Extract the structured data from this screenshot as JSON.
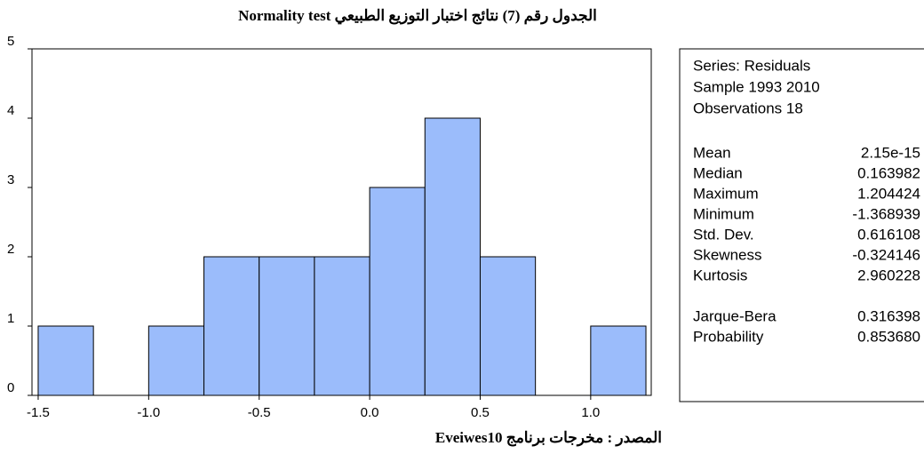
{
  "chart_data": {
    "type": "histogram",
    "title": "الجدول رقم (7) نتائج  اختبار التوزيع الطبيعي Normality test",
    "bins": [
      -1.5,
      -1.25,
      -1.0,
      -0.75,
      -0.5,
      -0.25,
      0.0,
      0.25,
      0.5,
      0.75,
      1.0,
      1.25
    ],
    "values": [
      1,
      0,
      1,
      2,
      2,
      2,
      3,
      4,
      2,
      0,
      1
    ],
    "color": "#9bbcfb",
    "xlim": [
      -1.528,
      1.274
    ],
    "ylim": [
      0,
      5
    ],
    "xticks": [
      {
        "value": -1.5,
        "label": "-1.5"
      },
      {
        "value": -1.0,
        "label": "-1.0"
      },
      -0.5,
      {
        "value": 0.0,
        "label": "0.0"
      },
      0.5,
      {
        "value": 1.0,
        "label": "1.0"
      }
    ],
    "yticks": [
      0,
      1,
      2,
      3,
      4,
      5
    ],
    "stats_box": {
      "header": [
        "Series: Residuals",
        "Sample 1993 2010",
        "Observations 18"
      ],
      "rows": [
        [
          "Mean",
          "2.15e-15"
        ],
        [
          "Median",
          "0.163982"
        ],
        [
          "Maximum",
          "1.204424"
        ],
        [
          "Minimum",
          "-1.368939"
        ],
        [
          "Std. Dev.",
          "0.616108"
        ],
        [
          "Skewness",
          "-0.324146"
        ],
        [
          "Kurtosis",
          "2.960228"
        ]
      ],
      "tests": [
        [
          "Jarque-Bera",
          "0.316398"
        ],
        [
          "Probability",
          "0.853680"
        ]
      ]
    },
    "source": "المصدر : مخرجات برنامج Eveiwes10"
  }
}
